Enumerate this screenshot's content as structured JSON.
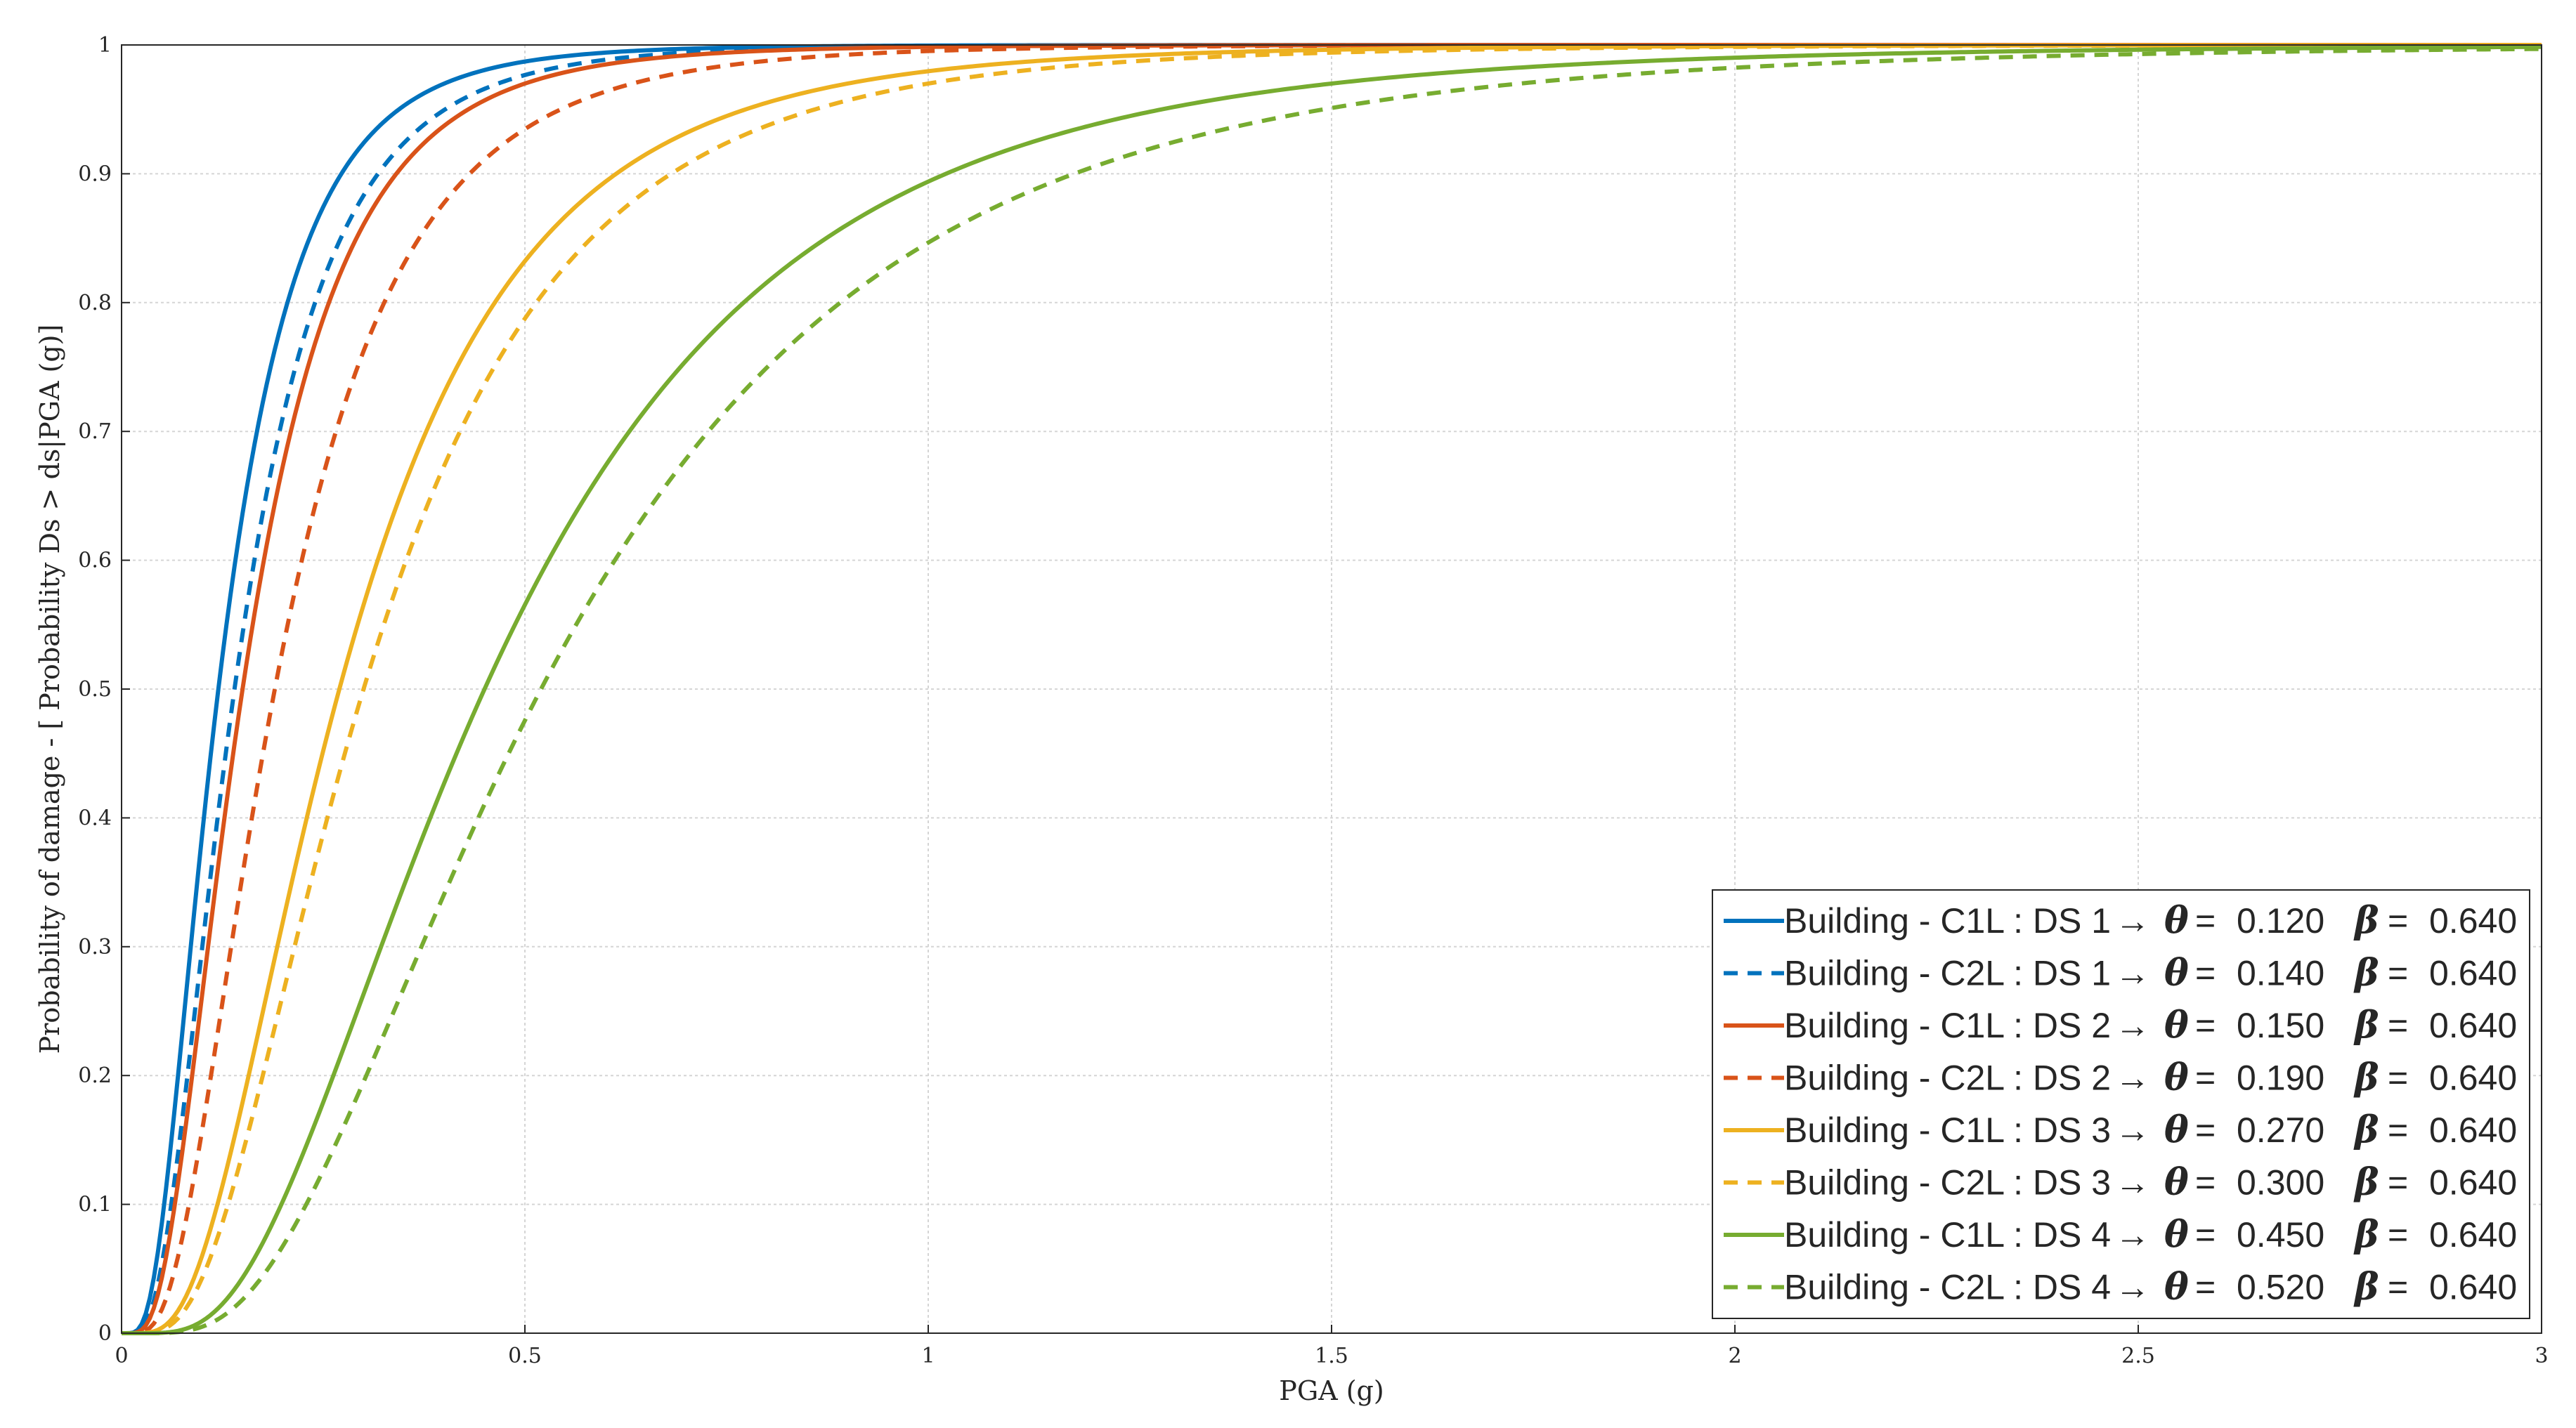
{
  "chart_data": {
    "type": "line",
    "title": "",
    "xlabel": "PGA (g)",
    "ylabel": "Probability of damage - [ Probability Ds > ds|PGA (g)]",
    "xlim": [
      0,
      3
    ],
    "ylim": [
      0,
      1
    ],
    "xticks": [
      0,
      0.5,
      1,
      1.5,
      2,
      2.5,
      3
    ],
    "xtick_labels": [
      "0",
      "0.5",
      "1",
      "1.5",
      "2",
      "2.5",
      "3"
    ],
    "yticks": [
      0,
      0.1,
      0.2,
      0.3,
      0.4,
      0.5,
      0.6,
      0.7,
      0.8,
      0.9,
      1
    ],
    "ytick_labels": [
      "0",
      "0.1",
      "0.2",
      "0.3",
      "0.4",
      "0.5",
      "0.6",
      "0.7",
      "0.8",
      "0.9",
      "1"
    ],
    "grid": true,
    "legend_position": "bottom-right",
    "curve_model": "lognormal CDF of PGA with median theta and dispersion beta",
    "series": [
      {
        "name": "Building - C1L : DS 1",
        "theta_label": "0.120",
        "beta_label": "0.640",
        "theta": 0.12,
        "beta": 0.64,
        "color": "#0072BD",
        "dash": "solid"
      },
      {
        "name": "Building - C2L : DS 1",
        "theta_label": "0.140",
        "beta_label": "0.640",
        "theta": 0.14,
        "beta": 0.64,
        "color": "#0072BD",
        "dash": "dashed"
      },
      {
        "name": "Building - C1L : DS 2",
        "theta_label": "0.150",
        "beta_label": "0.640",
        "theta": 0.15,
        "beta": 0.64,
        "color": "#D95319",
        "dash": "solid"
      },
      {
        "name": "Building - C2L : DS 2",
        "theta_label": "0.190",
        "beta_label": "0.640",
        "theta": 0.19,
        "beta": 0.64,
        "color": "#D95319",
        "dash": "dashed"
      },
      {
        "name": "Building - C1L : DS 3",
        "theta_label": "0.270",
        "beta_label": "0.640",
        "theta": 0.27,
        "beta": 0.64,
        "color": "#EDB120",
        "dash": "solid"
      },
      {
        "name": "Building - C2L : DS 3",
        "theta_label": "0.300",
        "beta_label": "0.640",
        "theta": 0.3,
        "beta": 0.64,
        "color": "#EDB120",
        "dash": "dashed"
      },
      {
        "name": "Building - C1L : DS 4",
        "theta_label": "0.450",
        "beta_label": "0.640",
        "theta": 0.45,
        "beta": 0.64,
        "color": "#77AC30",
        "dash": "solid"
      },
      {
        "name": "Building - C2L : DS 4",
        "theta_label": "0.520",
        "beta_label": "0.640",
        "theta": 0.52,
        "beta": 0.64,
        "color": "#77AC30",
        "dash": "dashed"
      }
    ],
    "legend_arrow": "→",
    "legend_theta_symbol": "θ",
    "legend_beta_symbol": "β",
    "legend_equals": "="
  }
}
